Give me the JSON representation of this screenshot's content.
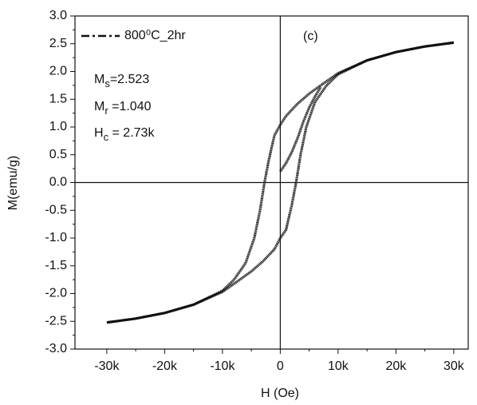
{
  "chart_data": {
    "type": "line",
    "x_label": "H (Oe)",
    "y_label": "M(emu/g)",
    "annotations": [
      {
        "main": "M",
        "sub": "s",
        "tail": "=2.523"
      },
      {
        "main": "M",
        "sub": "r",
        "tail": " =1.040"
      },
      {
        "main": "H",
        "sub": "c",
        "tail": " = 2.73k"
      },
      {
        "main": "(c)"
      }
    ],
    "legend": "upper left",
    "grid": false,
    "xlim": [
      -35500,
      32500
    ],
    "ylim": [
      -3,
      3
    ],
    "xticks": [
      {
        "value": -30000,
        "label": "-30k"
      },
      {
        "value": -20000,
        "label": "-20k"
      },
      {
        "value": -10000,
        "label": "-10k"
      },
      0,
      {
        "value": 10000,
        "label": "10k"
      },
      {
        "value": 20000,
        "label": "20k"
      },
      {
        "value": 30000,
        "label": "30k"
      }
    ],
    "yticks": [
      {
        "value": -3,
        "label": "-3.0"
      },
      -2.5,
      {
        "value": -2,
        "label": "-2.0"
      },
      -1.5,
      {
        "value": -1,
        "label": "-1.0"
      },
      -0.5,
      {
        "value": 0,
        "label": "0.0"
      },
      0.5,
      {
        "value": 1,
        "label": "1.0"
      },
      1.5,
      {
        "value": 2,
        "label": "2.0"
      },
      2.5,
      {
        "value": 3,
        "label": "3.0"
      }
    ],
    "series": [
      {
        "name": "800⁰C_2hr",
        "color": "#111111",
        "x": [
          30000,
          25000,
          20000,
          15000,
          10000,
          7000,
          5000,
          3000,
          1000,
          0,
          -1000,
          -2000,
          -2730,
          -3500,
          -4500,
          -6000,
          -8000,
          -10000,
          -15000,
          -20000,
          -25000,
          -30000,
          null,
          -30000,
          -25000,
          -20000,
          -15000,
          -10000,
          -7000,
          -5000,
          -3000,
          -1000,
          0,
          1000,
          2000,
          2730,
          3500,
          4500,
          6000,
          8000,
          10000,
          15000,
          20000,
          25000,
          30000,
          null,
          0,
          1000,
          2000,
          3000,
          4000,
          5000,
          6000,
          7000
        ],
        "values": [
          2.523,
          2.45,
          2.35,
          2.2,
          1.97,
          1.75,
          1.6,
          1.42,
          1.2,
          1.04,
          0.85,
          0.4,
          0,
          -0.5,
          -1.0,
          -1.45,
          -1.75,
          -1.95,
          -2.2,
          -2.35,
          -2.45,
          -2.52,
          null,
          -2.523,
          -2.45,
          -2.35,
          -2.2,
          -1.97,
          -1.75,
          -1.6,
          -1.42,
          -1.2,
          -1.0,
          -0.85,
          -0.4,
          0,
          0.5,
          1.0,
          1.45,
          1.75,
          1.95,
          2.2,
          2.35,
          2.45,
          2.52,
          null,
          0.2,
          0.35,
          0.55,
          0.8,
          1.1,
          1.35,
          1.55,
          1.72
        ]
      }
    ]
  }
}
